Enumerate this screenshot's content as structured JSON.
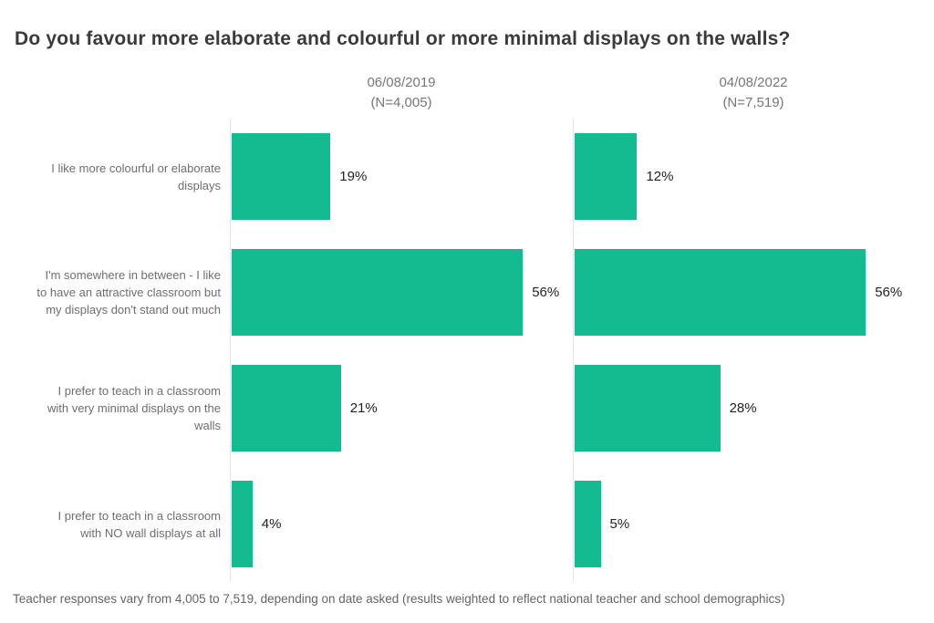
{
  "title": "Do you favour more elaborate and colourful or more minimal displays on the walls?",
  "panels": [
    {
      "date": "06/08/2019",
      "sample": "(N=4,005)"
    },
    {
      "date": "04/08/2022",
      "sample": "(N=7,519)"
    }
  ],
  "rows": [
    {
      "label": "I like more colourful or elaborate displays",
      "values": [
        19,
        12
      ],
      "display": [
        "19%",
        "12%"
      ]
    },
    {
      "label": "I'm somewhere in between - I like to have an attractive classroom but my displays don't stand out much",
      "values": [
        56,
        56
      ],
      "display": [
        "56%",
        "56%"
      ]
    },
    {
      "label": "I prefer to teach in a classroom with very minimal displays on the walls",
      "values": [
        21,
        28
      ],
      "display": [
        "21%",
        "28%"
      ]
    },
    {
      "label": "I prefer to teach in a classroom with NO wall displays at all",
      "values": [
        4,
        5
      ],
      "display": [
        "4%",
        "5%"
      ]
    }
  ],
  "footer": "Teacher responses vary from 4,005 to 7,519, depending on date asked (results weighted to reflect national teacher and school demographics)",
  "colors": {
    "bar": "#15bb90",
    "axis": "#e4e4e4",
    "title": "#3a3a3a",
    "label": "#6e6e6e",
    "header": "#777777",
    "value": "#222222",
    "footer": "#646464"
  },
  "chart_data": {
    "type": "bar",
    "orientation": "horizontal",
    "title": "Do you favour more elaborate and colourful or more minimal displays on the walls?",
    "categories": [
      "I like more colourful or elaborate displays",
      "I'm somewhere in between - I like to have an attractive classroom but my displays don't stand out much",
      "I prefer to teach in a classroom with very minimal displays on the walls",
      "I prefer to teach in a classroom with NO wall displays at all"
    ],
    "series": [
      {
        "name": "06/08/2019 (N=4,005)",
        "values": [
          19,
          56,
          21,
          4
        ]
      },
      {
        "name": "04/08/2022 (N=7,519)",
        "values": [
          12,
          56,
          28,
          5
        ]
      }
    ],
    "value_unit": "%",
    "xlim": [
      0,
      62
    ],
    "grid": false,
    "data_labels": true,
    "legend_position": "column-headers",
    "bar_color": "#15bb90",
    "note": "Teacher responses vary from 4,005 to 7,519, depending on date asked (results weighted to reflect national teacher and school demographics)"
  }
}
